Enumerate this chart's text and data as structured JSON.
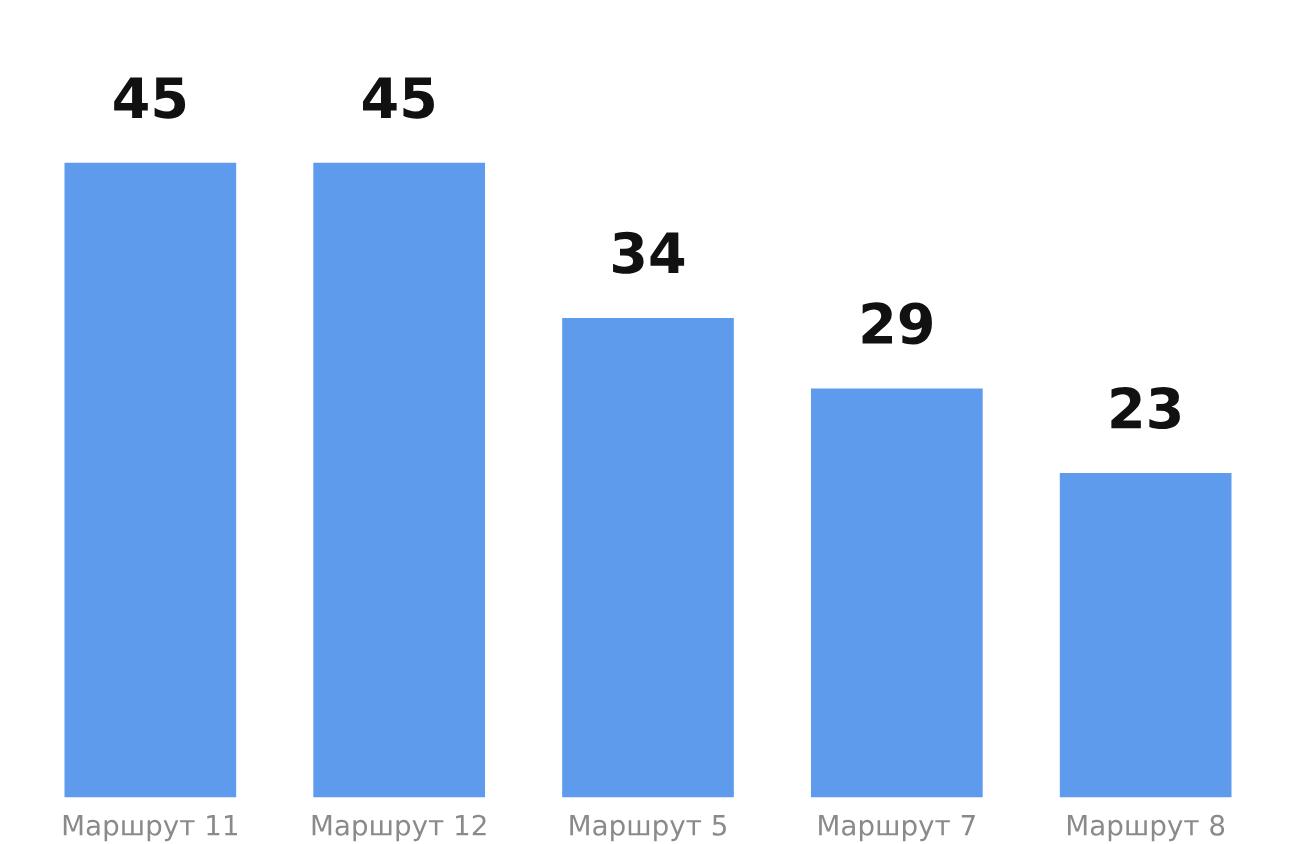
{
  "chart_data": {
    "type": "bar",
    "categories": [
      "Маршрут 11",
      "Маршрут 12",
      "Маршрут 5",
      "Маршрут 7",
      "Маршрут 8"
    ],
    "values": [
      45,
      45,
      34,
      29,
      23
    ],
    "color": "#5f9bec",
    "data_labels": true,
    "grid": false,
    "legend": false
  }
}
